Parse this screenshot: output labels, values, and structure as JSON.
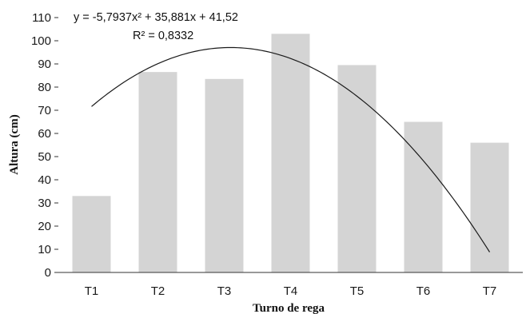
{
  "chart_data": {
    "type": "bar",
    "categories": [
      "T1",
      "T2",
      "T3",
      "T4",
      "T5",
      "T6",
      "T7"
    ],
    "values": [
      33,
      86.5,
      83.5,
      103,
      89.5,
      65,
      56
    ],
    "xlabel": "Turno de rega",
    "ylabel": "Altura (cm)",
    "ylim": [
      0,
      110
    ],
    "yticks": [
      0,
      10,
      20,
      30,
      40,
      50,
      60,
      70,
      80,
      90,
      100,
      110
    ],
    "grid": false,
    "trendline": {
      "type": "polynomial",
      "order": 2,
      "coefficients": [
        -5.7937,
        35.881,
        41.52
      ],
      "equation": "y = -5,7937x² + 35,881x + 41,52",
      "r_squared": "R² = 0,8332"
    },
    "colors": {
      "bar": "#d4d4d4",
      "axis": "#333333",
      "trend": "#1a1a1a"
    }
  }
}
